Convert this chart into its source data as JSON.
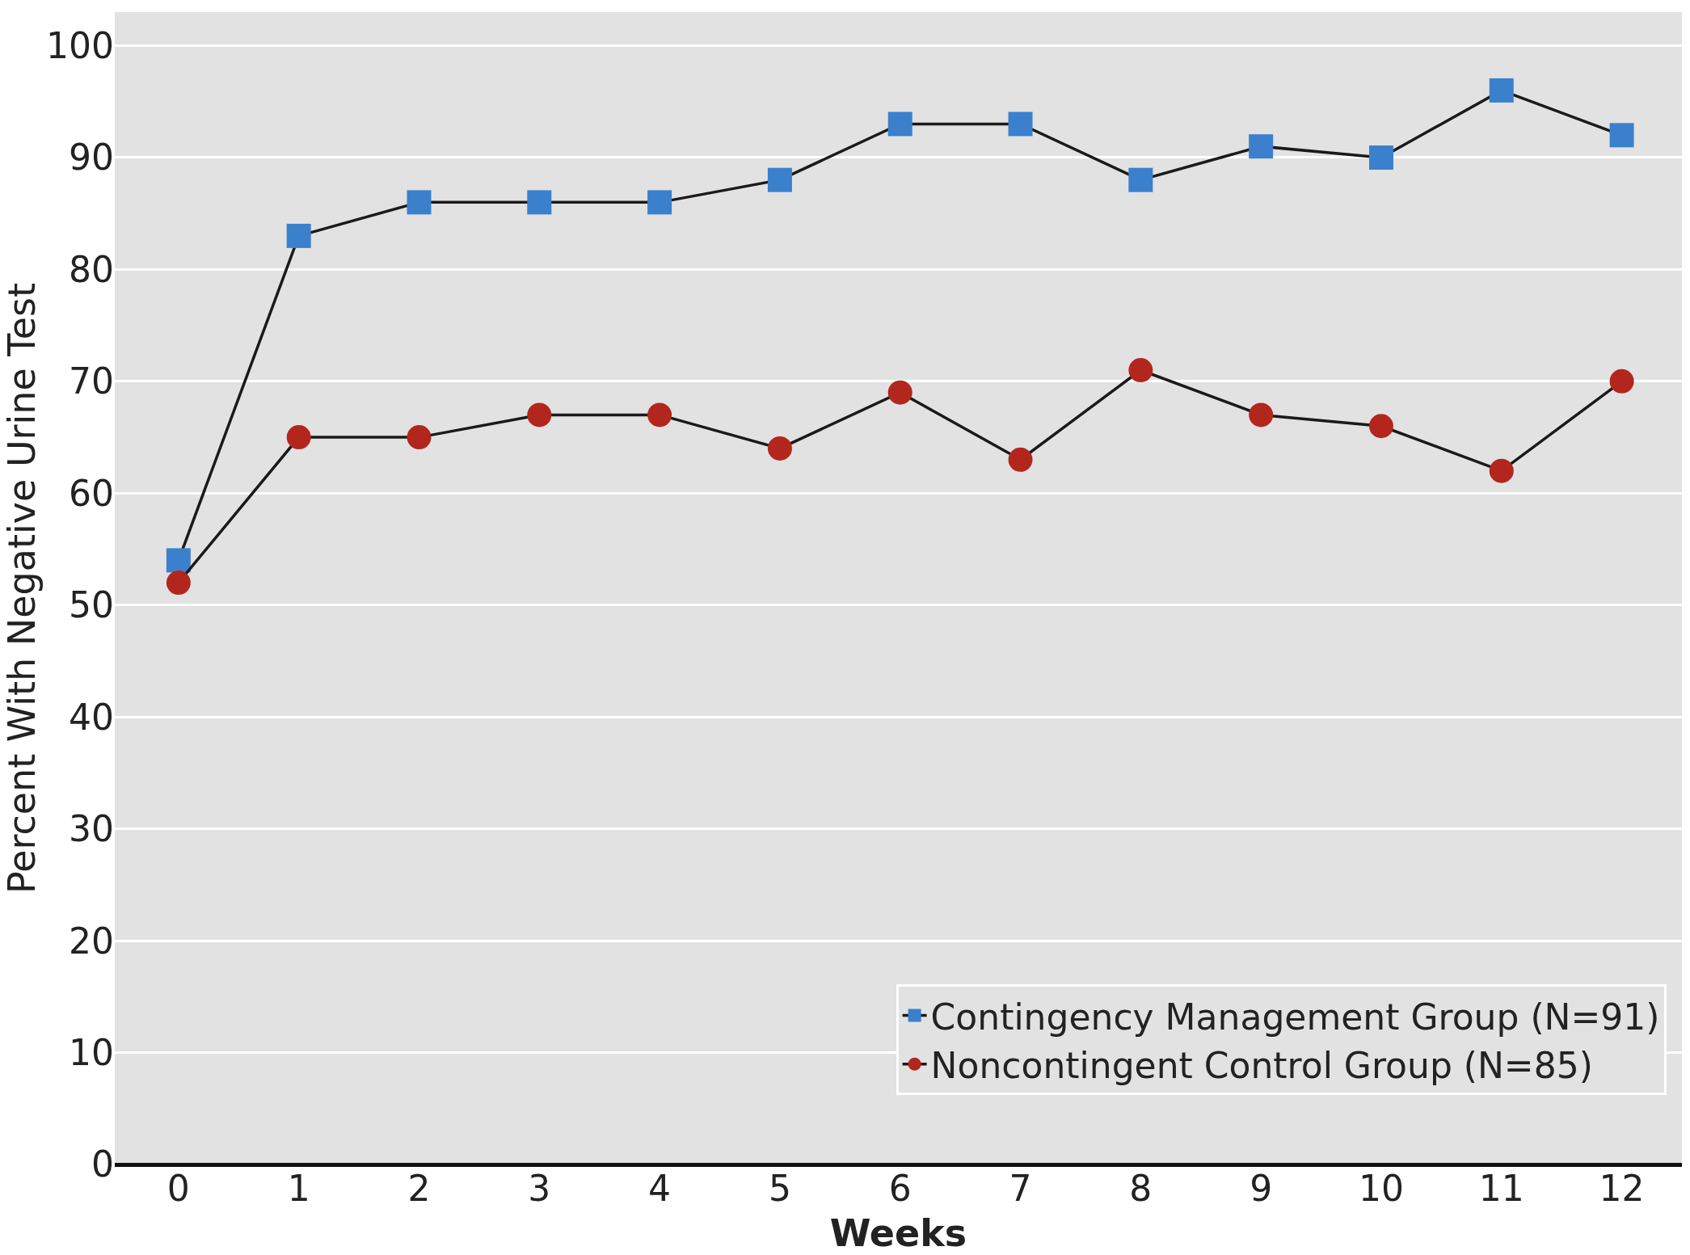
{
  "chart_data": {
    "type": "line",
    "xlabel": "Weeks",
    "ylabel": "Percent With Negative Urine Test",
    "x": [
      0,
      1,
      2,
      3,
      4,
      5,
      6,
      7,
      8,
      9,
      10,
      11,
      12
    ],
    "series": [
      {
        "name": "Contingency Management Group (N=91)",
        "color": "#3b80cc",
        "marker": "square",
        "values": [
          54,
          83,
          86,
          86,
          86,
          88,
          93,
          93,
          88,
          91,
          90,
          96,
          92
        ]
      },
      {
        "name": "Noncontingent Control Group (N=85)",
        "color": "#b3261e",
        "marker": "circle",
        "values": [
          52,
          65,
          65,
          67,
          67,
          64,
          69,
          63,
          71,
          67,
          66,
          62,
          70
        ]
      }
    ],
    "xlim": [
      -0.53,
      12.5
    ],
    "xticks": [
      0,
      1,
      2,
      3,
      4,
      5,
      6,
      7,
      8,
      9,
      10,
      11,
      12
    ],
    "ylim": [
      0,
      103
    ],
    "yticks": [
      0,
      10,
      20,
      30,
      40,
      50,
      60,
      70,
      80,
      90,
      100
    ],
    "grid": "y",
    "legend": "bottom right",
    "line_style": "solid"
  }
}
